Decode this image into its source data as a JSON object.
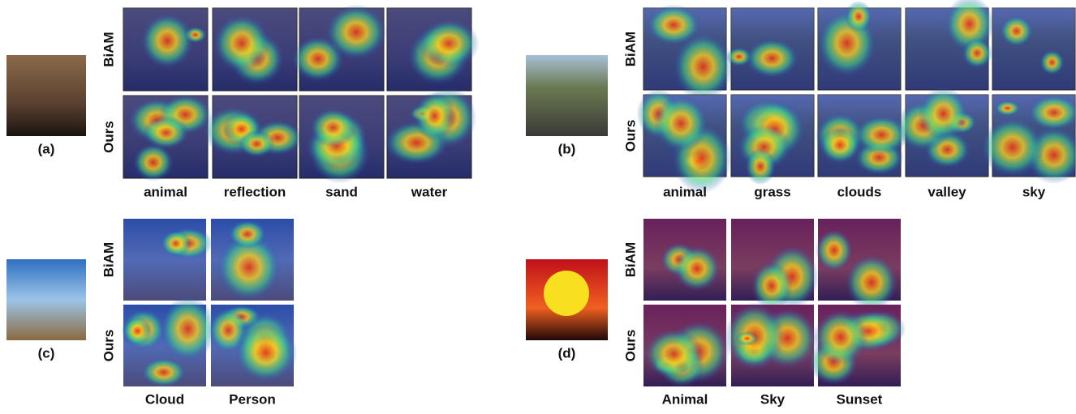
{
  "panels": [
    {
      "label": "(a)",
      "rows": [
        "BiAM",
        "Ours"
      ],
      "columns": [
        "animal",
        "reflection",
        "sand",
        "water"
      ]
    },
    {
      "label": "(b)",
      "rows": [
        "BiAM",
        "Ours"
      ],
      "columns": [
        "animal",
        "grass",
        "clouds",
        "valley",
        "sky"
      ]
    },
    {
      "label": "(c)",
      "rows": [
        "BiAM",
        "Ours"
      ],
      "columns": [
        "Cloud",
        "Person"
      ]
    },
    {
      "label": "(d)",
      "rows": [
        "BiAM",
        "Ours"
      ],
      "columns": [
        "Animal",
        "Sky",
        "Sunset"
      ]
    }
  ]
}
